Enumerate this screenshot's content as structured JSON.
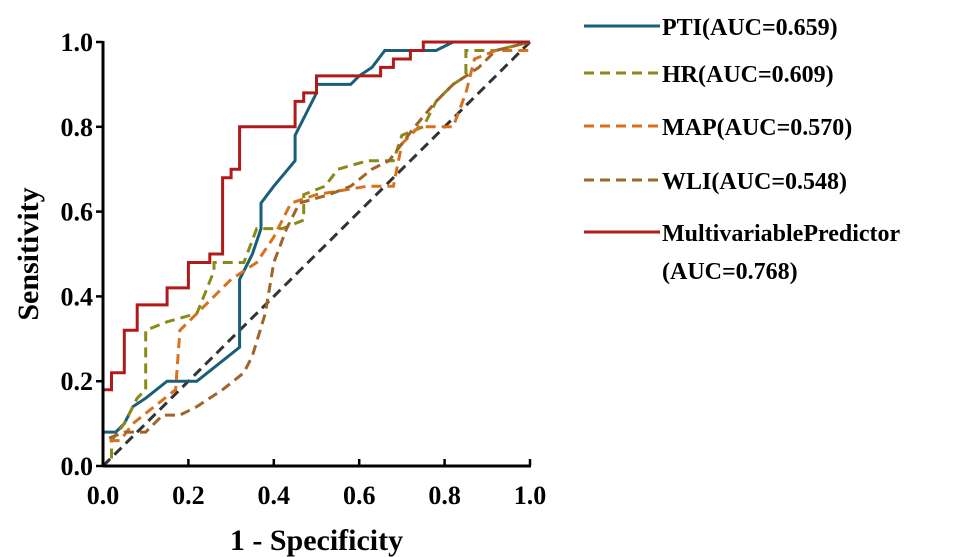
{
  "chart_data": {
    "type": "line",
    "title": "",
    "xlabel": "1 - Specificity",
    "ylabel": "Sensitivity",
    "xlim": [
      0,
      1
    ],
    "ylim": [
      0,
      1
    ],
    "x_ticks": [
      "0.0",
      "0.2",
      "0.4",
      "0.6",
      "0.8",
      "1.0"
    ],
    "y_ticks": [
      "0.0",
      "0.2",
      "0.4",
      "0.6",
      "0.8",
      "1.0"
    ],
    "grid": false,
    "legend_position": "right",
    "reference_line": {
      "points": [
        [
          0,
          0
        ],
        [
          1,
          1
        ]
      ],
      "color": "#333333",
      "style": "dashed"
    },
    "series": [
      {
        "name": "PTI(AUC=0.659)",
        "color": "#1a5f7a",
        "style": "solid",
        "points": [
          [
            0,
            0
          ],
          [
            0,
            0.08
          ],
          [
            0.03,
            0.08
          ],
          [
            0.05,
            0.1
          ],
          [
            0.07,
            0.14
          ],
          [
            0.1,
            0.16
          ],
          [
            0.15,
            0.2
          ],
          [
            0.22,
            0.2
          ],
          [
            0.32,
            0.28
          ],
          [
            0.32,
            0.44
          ],
          [
            0.35,
            0.5
          ],
          [
            0.37,
            0.56
          ],
          [
            0.37,
            0.62
          ],
          [
            0.4,
            0.66
          ],
          [
            0.45,
            0.72
          ],
          [
            0.45,
            0.78
          ],
          [
            0.48,
            0.84
          ],
          [
            0.5,
            0.88
          ],
          [
            0.5,
            0.9
          ],
          [
            0.58,
            0.9
          ],
          [
            0.6,
            0.92
          ],
          [
            0.63,
            0.94
          ],
          [
            0.66,
            0.98
          ],
          [
            0.78,
            0.98
          ],
          [
            0.82,
            1.0
          ],
          [
            1,
            1
          ]
        ]
      },
      {
        "name": "HR(AUC=0.609)",
        "color": "#8a8a1a",
        "style": "dashed",
        "points": [
          [
            0,
            0
          ],
          [
            0.02,
            0
          ],
          [
            0.02,
            0.06
          ],
          [
            0.05,
            0.1
          ],
          [
            0.08,
            0.16
          ],
          [
            0.1,
            0.18
          ],
          [
            0.1,
            0.32
          ],
          [
            0.15,
            0.34
          ],
          [
            0.22,
            0.36
          ],
          [
            0.26,
            0.46
          ],
          [
            0.26,
            0.48
          ],
          [
            0.33,
            0.48
          ],
          [
            0.36,
            0.56
          ],
          [
            0.42,
            0.56
          ],
          [
            0.47,
            0.58
          ],
          [
            0.47,
            0.64
          ],
          [
            0.52,
            0.66
          ],
          [
            0.55,
            0.7
          ],
          [
            0.62,
            0.72
          ],
          [
            0.68,
            0.72
          ],
          [
            0.7,
            0.78
          ],
          [
            0.75,
            0.8
          ],
          [
            0.78,
            0.86
          ],
          [
            0.82,
            0.9
          ],
          [
            0.85,
            0.92
          ],
          [
            0.85,
            0.98
          ],
          [
            0.92,
            0.98
          ],
          [
            1,
            1
          ]
        ]
      },
      {
        "name": "MAP(AUC=0.570)",
        "color": "#d7711e",
        "style": "dashed",
        "points": [
          [
            0,
            0
          ],
          [
            0,
            0.06
          ],
          [
            0.04,
            0.06
          ],
          [
            0.07,
            0.1
          ],
          [
            0.12,
            0.14
          ],
          [
            0.17,
            0.18
          ],
          [
            0.18,
            0.32
          ],
          [
            0.24,
            0.38
          ],
          [
            0.3,
            0.44
          ],
          [
            0.36,
            0.48
          ],
          [
            0.4,
            0.54
          ],
          [
            0.44,
            0.62
          ],
          [
            0.5,
            0.64
          ],
          [
            0.62,
            0.66
          ],
          [
            0.68,
            0.66
          ],
          [
            0.7,
            0.76
          ],
          [
            0.74,
            0.8
          ],
          [
            0.82,
            0.8
          ],
          [
            0.85,
            0.88
          ],
          [
            0.87,
            0.96
          ],
          [
            0.92,
            0.98
          ],
          [
            1,
            0.98
          ]
        ]
      },
      {
        "name": "WLI(AUC=0.548)",
        "color": "#a0642a",
        "style": "dashed",
        "points": [
          [
            0,
            0
          ],
          [
            0,
            0.06
          ],
          [
            0.05,
            0.08
          ],
          [
            0.1,
            0.08
          ],
          [
            0.14,
            0.12
          ],
          [
            0.18,
            0.12
          ],
          [
            0.22,
            0.14
          ],
          [
            0.28,
            0.18
          ],
          [
            0.33,
            0.22
          ],
          [
            0.35,
            0.26
          ],
          [
            0.38,
            0.36
          ],
          [
            0.4,
            0.48
          ],
          [
            0.43,
            0.56
          ],
          [
            0.46,
            0.62
          ],
          [
            0.53,
            0.64
          ],
          [
            0.58,
            0.66
          ],
          [
            0.63,
            0.7
          ],
          [
            0.67,
            0.72
          ],
          [
            0.7,
            0.76
          ],
          [
            0.73,
            0.8
          ],
          [
            0.78,
            0.86
          ],
          [
            0.82,
            0.9
          ],
          [
            0.88,
            0.94
          ],
          [
            0.92,
            0.98
          ],
          [
            1,
            1
          ]
        ]
      },
      {
        "name": "MultivariablePredictor (AUC=0.768)",
        "color": "#b01a1a",
        "style": "solid",
        "points": [
          [
            0,
            0
          ],
          [
            0,
            0.18
          ],
          [
            0.02,
            0.18
          ],
          [
            0.02,
            0.22
          ],
          [
            0.05,
            0.22
          ],
          [
            0.05,
            0.32
          ],
          [
            0.08,
            0.32
          ],
          [
            0.08,
            0.38
          ],
          [
            0.15,
            0.38
          ],
          [
            0.15,
            0.42
          ],
          [
            0.2,
            0.42
          ],
          [
            0.2,
            0.48
          ],
          [
            0.25,
            0.48
          ],
          [
            0.25,
            0.5
          ],
          [
            0.28,
            0.5
          ],
          [
            0.28,
            0.68
          ],
          [
            0.3,
            0.68
          ],
          [
            0.3,
            0.7
          ],
          [
            0.32,
            0.7
          ],
          [
            0.32,
            0.8
          ],
          [
            0.45,
            0.8
          ],
          [
            0.45,
            0.86
          ],
          [
            0.47,
            0.86
          ],
          [
            0.47,
            0.88
          ],
          [
            0.5,
            0.88
          ],
          [
            0.5,
            0.92
          ],
          [
            0.65,
            0.92
          ],
          [
            0.65,
            0.94
          ],
          [
            0.68,
            0.94
          ],
          [
            0.68,
            0.96
          ],
          [
            0.72,
            0.96
          ],
          [
            0.72,
            0.98
          ],
          [
            0.75,
            0.98
          ],
          [
            0.75,
            1.0
          ],
          [
            1,
            1
          ]
        ]
      }
    ]
  },
  "legend": {
    "items": [
      {
        "label_lines": [
          "PTI(AUC=0.659)"
        ]
      },
      {
        "label_lines": [
          "HR(AUC=0.609)"
        ]
      },
      {
        "label_lines": [
          "MAP(AUC=0.570)"
        ]
      },
      {
        "label_lines": [
          "WLI(AUC=0.548)"
        ]
      },
      {
        "label_lines": [
          "MultivariablePredictor",
          "(AUC=0.768)"
        ]
      }
    ]
  }
}
